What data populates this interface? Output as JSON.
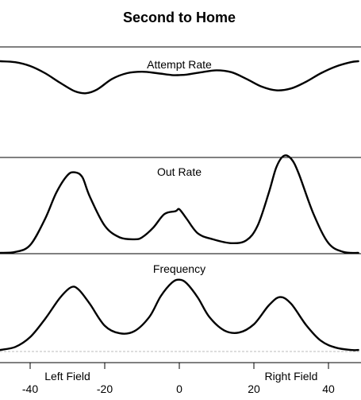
{
  "chart_data": {
    "type": "line",
    "title": "Second to Home",
    "xlim": [
      -48,
      48
    ],
    "x_ticks": [
      -40,
      -20,
      0,
      20,
      40
    ],
    "side_labels": {
      "left": "Left Field",
      "right": "Right Field"
    },
    "panels": [
      {
        "title": "Attempt Rate",
        "ylim": [
          0,
          1
        ],
        "x": [
          -48,
          -44,
          -40,
          -36,
          -32,
          -28,
          -25,
          -22,
          -18,
          -14,
          -10,
          -6,
          -2,
          0,
          2,
          6,
          10,
          14,
          18,
          22,
          26,
          30,
          34,
          38,
          42,
          46,
          48
        ],
        "y": [
          0.95,
          0.93,
          0.85,
          0.7,
          0.5,
          0.32,
          0.28,
          0.36,
          0.58,
          0.7,
          0.73,
          0.7,
          0.66,
          0.66,
          0.67,
          0.72,
          0.76,
          0.72,
          0.58,
          0.42,
          0.34,
          0.38,
          0.52,
          0.7,
          0.84,
          0.93,
          0.95
        ]
      },
      {
        "title": "Out Rate",
        "ylim": [
          0,
          1
        ],
        "x": [
          -48,
          -44,
          -40,
          -36,
          -33,
          -30,
          -28,
          -26,
          -24,
          -20,
          -16,
          -12,
          -10,
          -7,
          -4,
          -1,
          0,
          2,
          5,
          9,
          14,
          18,
          21,
          24,
          26,
          28,
          30,
          32,
          36,
          40,
          44,
          48
        ],
        "y": [
          0.0,
          0.01,
          0.08,
          0.35,
          0.62,
          0.8,
          0.83,
          0.78,
          0.58,
          0.28,
          0.16,
          0.14,
          0.16,
          0.26,
          0.4,
          0.43,
          0.45,
          0.35,
          0.2,
          0.14,
          0.1,
          0.13,
          0.28,
          0.62,
          0.88,
          1.0,
          0.97,
          0.82,
          0.4,
          0.1,
          0.01,
          0.0
        ]
      },
      {
        "title": "Frequency",
        "ylim": [
          0,
          1
        ],
        "x": [
          -48,
          -44,
          -40,
          -36,
          -32,
          -29,
          -27,
          -24,
          -20,
          -16,
          -12,
          -8,
          -5,
          -2,
          0,
          2,
          5,
          8,
          12,
          16,
          20,
          24,
          27,
          30,
          34,
          38,
          42,
          46,
          48
        ],
        "y": [
          0.01,
          0.05,
          0.18,
          0.42,
          0.7,
          0.84,
          0.81,
          0.62,
          0.33,
          0.23,
          0.26,
          0.45,
          0.72,
          0.9,
          0.94,
          0.89,
          0.7,
          0.45,
          0.27,
          0.24,
          0.35,
          0.6,
          0.71,
          0.62,
          0.34,
          0.13,
          0.04,
          0.01,
          0.01
        ]
      }
    ]
  }
}
